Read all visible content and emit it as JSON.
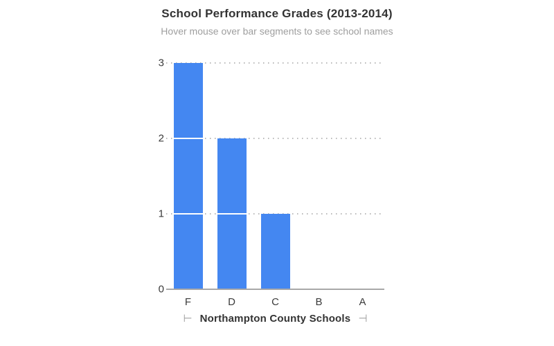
{
  "chart": {
    "title": "School Performance Grades (2013-2014)",
    "subtitle": "Hover mouse over bar segments to see school names",
    "x_axis_title": "Northampton County Schools"
  },
  "icons": {
    "axis_arrow_left": "⊢",
    "axis_arrow_right": "⊣"
  },
  "colors": {
    "bar": "#4487f1",
    "segment_separator": "#ffffff",
    "gridline": "#b8b8b8",
    "axis_line": "#a8a8a8",
    "title_text": "#333333",
    "subtitle_text": "#9e9e9e",
    "tick_text": "#3a3a3a",
    "arrow": "#9a9a9a"
  },
  "chart_data": {
    "type": "bar",
    "stacked": true,
    "orientation": "vertical",
    "title": "School Performance Grades (2013-2014)",
    "subtitle": "Hover mouse over bar segments to see school names",
    "xlabel": "Northampton County Schools",
    "ylabel": "",
    "categories": [
      "F",
      "D",
      "C",
      "B",
      "A"
    ],
    "values": [
      3,
      2,
      1,
      0,
      0
    ],
    "segment_unit": 1,
    "yticks": [
      0,
      1,
      2,
      3
    ],
    "ylim": [
      0,
      3
    ],
    "grid": "horizontal dotted",
    "legend": "none",
    "bar_color": "#4487f1"
  }
}
